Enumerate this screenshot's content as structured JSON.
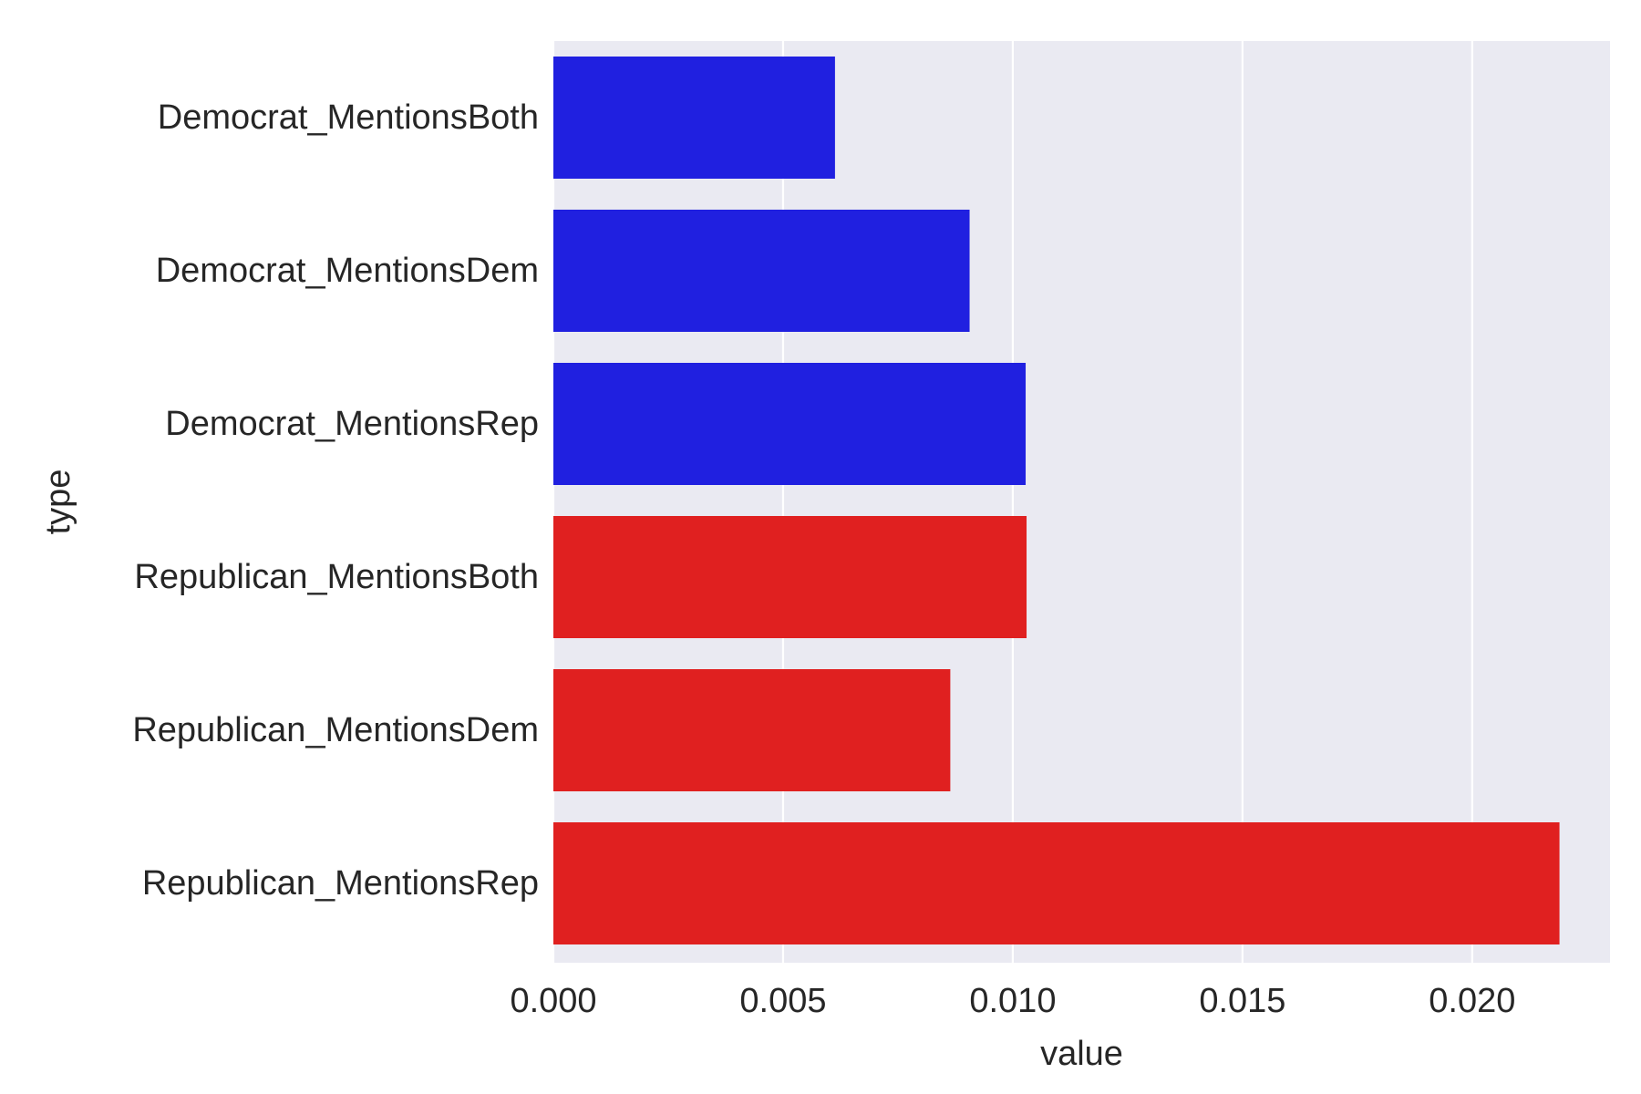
{
  "chart_data": {
    "type": "bar",
    "orientation": "horizontal",
    "xlabel": "value",
    "ylabel": "type",
    "xlim": [
      0,
      0.023
    ],
    "xticks": [
      0.0,
      0.005,
      0.01,
      0.015,
      0.02
    ],
    "xtick_labels": [
      "0.000",
      "0.005",
      "0.010",
      "0.015",
      "0.020"
    ],
    "grid": "vertical",
    "background_color": "#eaeaf2",
    "grid_color": "#ffffff",
    "categories": [
      "Democrat_MentionsBoth",
      "Democrat_MentionsDem",
      "Democrat_MentionsRep",
      "Republican_MentionsBoth",
      "Republican_MentionsDem",
      "Republican_MentionsRep"
    ],
    "values": [
      0.00613,
      0.00906,
      0.01028,
      0.0103,
      0.00864,
      0.0219
    ],
    "bar_colors": [
      "#2020e0",
      "#2020e0",
      "#2020e0",
      "#e02020",
      "#e02020",
      "#e02020"
    ]
  }
}
